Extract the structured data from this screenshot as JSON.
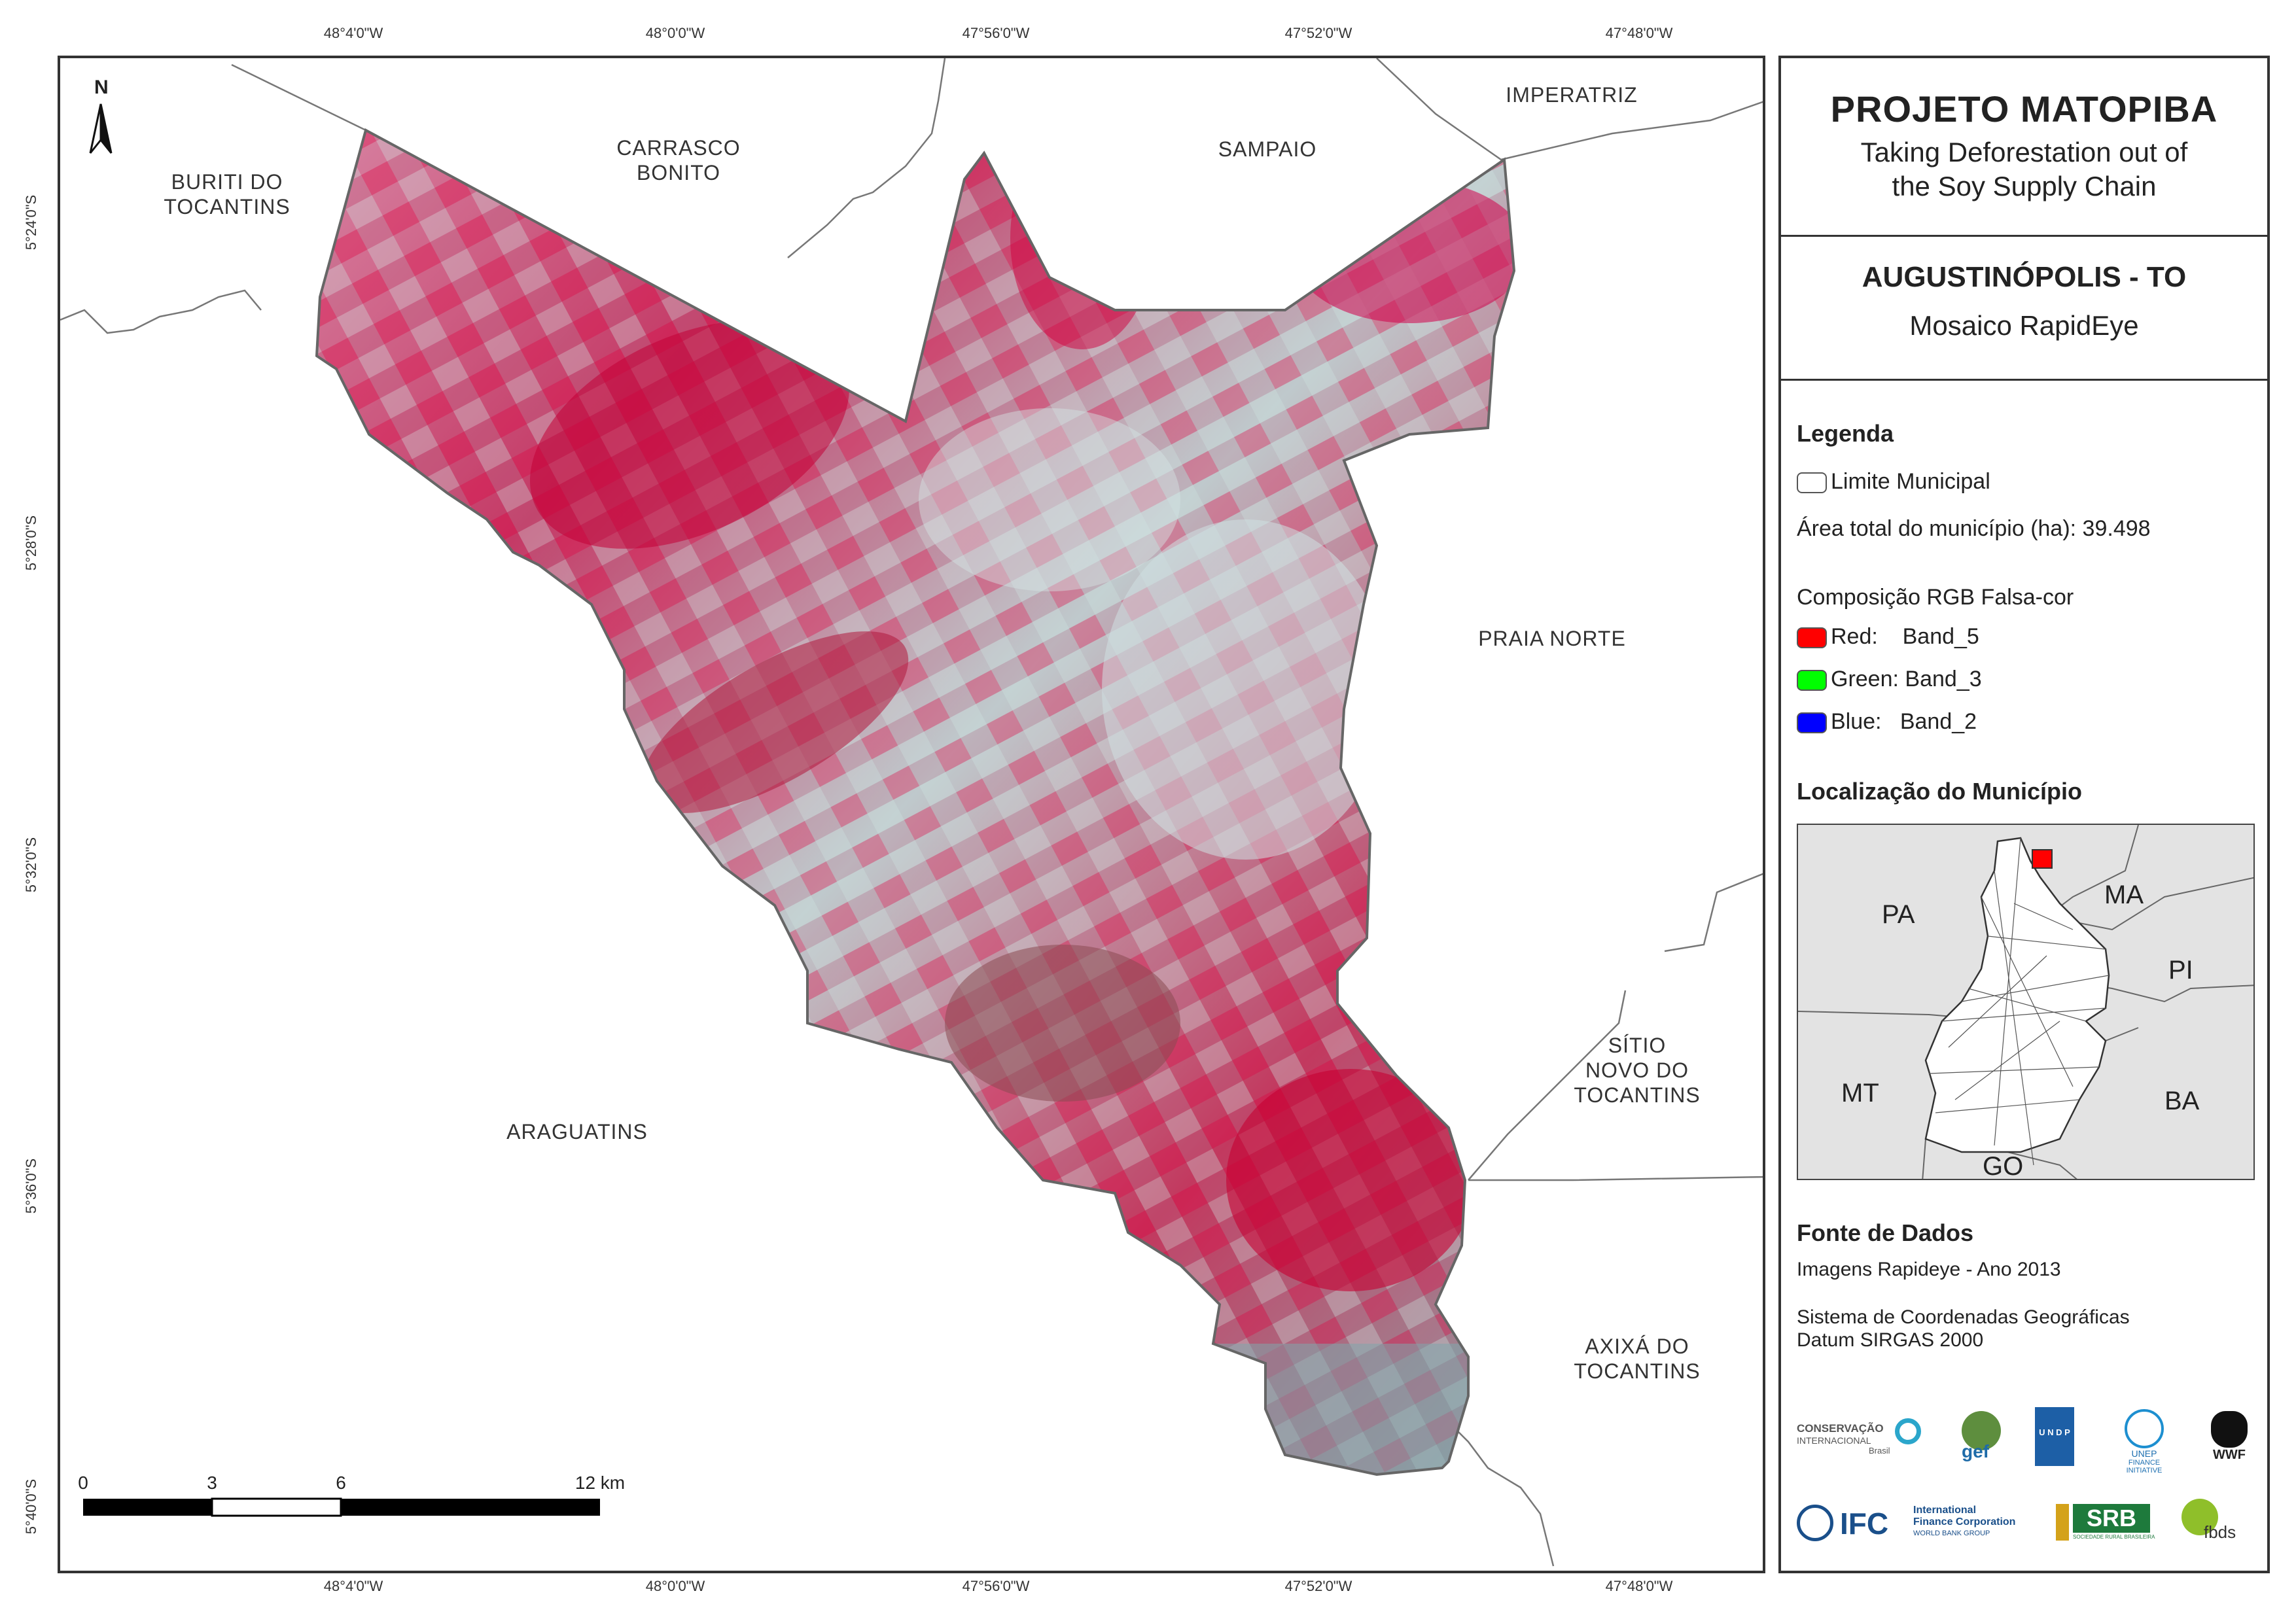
{
  "coords": {
    "top": [
      "48°4'0\"W",
      "48°0'0\"W",
      "47°56'0\"W",
      "47°52'0\"W",
      "47°48'0\"W"
    ],
    "bottom": [
      "48°4'0\"W",
      "48°0'0\"W",
      "47°56'0\"W",
      "47°52'0\"W",
      "47°48'0\"W"
    ],
    "left": [
      "5°24'0\"S",
      "5°28'0\"S",
      "5°32'0\"S",
      "5°36'0\"S",
      "5°40'0\"S"
    ]
  },
  "map": {
    "north": "N",
    "places": {
      "buriti": "BURITI DO\nTOCANTINS",
      "carrasco": "CARRASCO\nBONITO",
      "sampaio": "SAMPAIO",
      "imperatriz": "IMPERATRIZ",
      "praia_norte": "PRAIA NORTE",
      "sitio_novo": "SÍTIO\nNOVO DO\nTOCANTINS",
      "araguatins": "ARAGUATINS",
      "axixa": "AXIXÁ DO\nTOCANTINS"
    },
    "scale": {
      "labels": [
        "0",
        "3",
        "6",
        "12 km"
      ]
    }
  },
  "panel": {
    "title": "PROJETO MATOPIBA",
    "subtitle_line1": "Taking Deforestation out of",
    "subtitle_line2": "the Soy Supply Chain",
    "municipality": "AUGUSTINÓPOLIS - TO",
    "mosaic": "Mosaico RapidEye",
    "legend": {
      "heading": "Legenda",
      "boundary": "Limite Municipal",
      "area": "Área total do município (ha): 39.498",
      "rgb_heading": "Composição RGB Falsa-cor",
      "bands": [
        {
          "label": "Red:    Band_5",
          "color": "#ff0000"
        },
        {
          "label": "Green: Band_3",
          "color": "#00ff00"
        },
        {
          "label": "Blue:   Band_2",
          "color": "#0000ff"
        }
      ]
    },
    "location": {
      "heading": "Localização do Município",
      "states": [
        "PA",
        "MA",
        "PI",
        "MT",
        "BA",
        "GO"
      ]
    },
    "sources": {
      "heading": "Fonte de Dados",
      "line1": "Imagens Rapideye - Ano 2013",
      "line2": "Sistema de Coordenadas Geográficas",
      "line3": "Datum SIRGAS 2000"
    },
    "logos": {
      "ci1": "CONSERVAÇÃO",
      "ci2": "INTERNACIONAL",
      "ci3": "Brasil",
      "gef": "gef",
      "undp": "U N D P",
      "unep1": "UNEP",
      "unep2": "FINANCE",
      "unep3": "INITIATIVE",
      "wwf": "WWF",
      "ifc": "IFC",
      "ifc1": "International",
      "ifc2": "Finance Corporation",
      "ifc3": "WORLD BANK GROUP",
      "srb": "SRB",
      "srb_sub": "SOCIEDADE RURAL BRASILEIRA",
      "fbds": "fbds"
    }
  }
}
